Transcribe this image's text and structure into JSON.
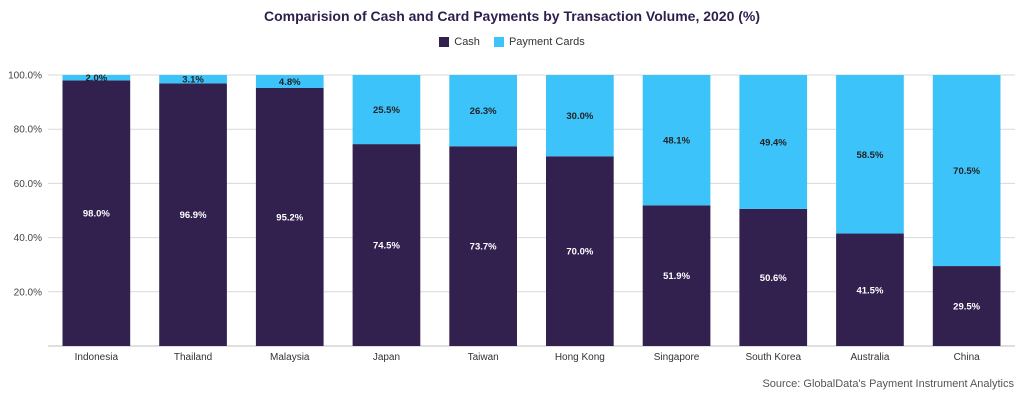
{
  "chart_data": {
    "type": "bar",
    "stacked": true,
    "title": "Comparision of Cash and Card Payments by Transaction Volume, 2020 (%)",
    "categories": [
      "Indonesia",
      "Thailand",
      "Malaysia",
      "Japan",
      "Taiwan",
      "Hong Kong",
      "Singapore",
      "South Korea",
      "Australia",
      "China"
    ],
    "series": [
      {
        "name": "Cash",
        "color": "#32204f",
        "values": [
          98.0,
          96.9,
          95.2,
          74.5,
          73.7,
          70.0,
          51.9,
          50.6,
          41.5,
          29.5
        ],
        "labels": [
          "98.0%",
          "96.9%",
          "95.2%",
          "74.5%",
          "73.7%",
          "70.0%",
          "51.9%",
          "50.6%",
          "41.5%",
          "29.5%"
        ]
      },
      {
        "name": "Payment Cards",
        "color": "#3cc3fa",
        "values": [
          2.0,
          3.1,
          4.8,
          25.5,
          26.3,
          30.0,
          48.1,
          49.4,
          58.5,
          70.5
        ],
        "labels": [
          "2.0%",
          "3.1%",
          "4.8%",
          "25.5%",
          "26.3%",
          "30.0%",
          "48.1%",
          "49.4%",
          "58.5%",
          "70.5%"
        ]
      }
    ],
    "ylim": [
      0,
      100
    ],
    "yticks": [
      20,
      40,
      60,
      80,
      100
    ],
    "ytick_labels": [
      "20.0%",
      "40.0%",
      "60.0%",
      "80.0%",
      "100.0%"
    ],
    "grid": true,
    "legend": "top-center",
    "source": "Source: GlobalData's Payment Instrument Analytics"
  }
}
